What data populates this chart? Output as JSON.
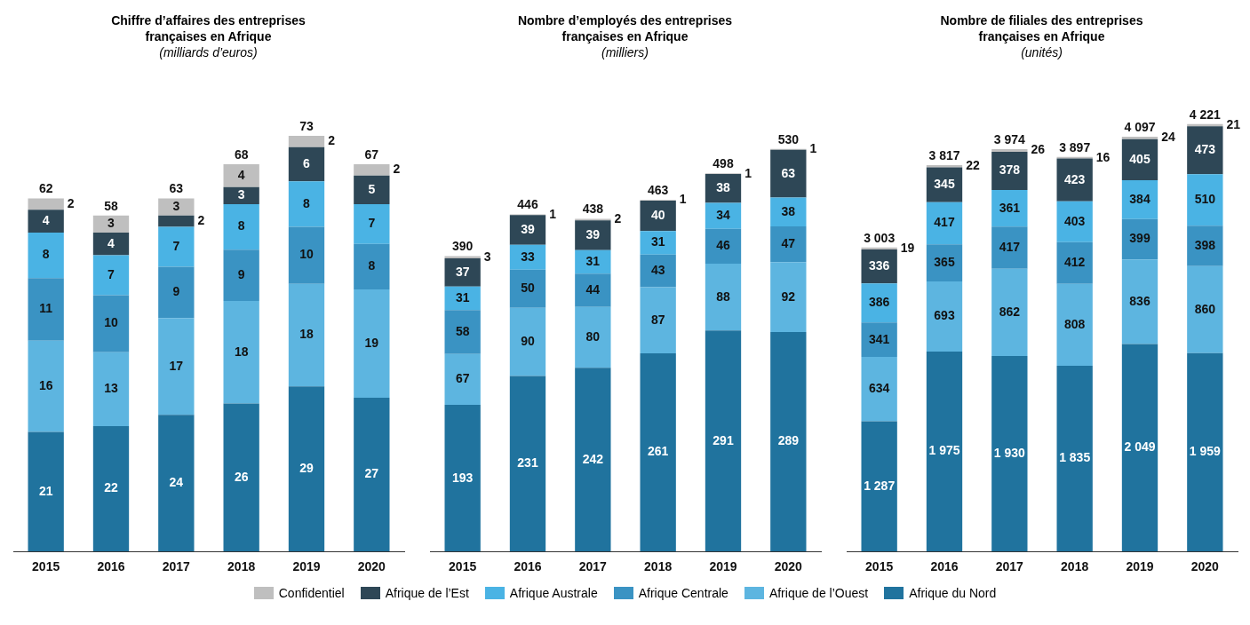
{
  "chart_data": [
    {
      "type": "bar",
      "title": "Chiffre d’affaires des entreprises françaises en Afrique",
      "subtitle": "(milliards d’euros)",
      "categories": [
        "2015",
        "2016",
        "2017",
        "2018",
        "2019",
        "2020"
      ],
      "stacked": true,
      "tick_labels": "x",
      "grid": false,
      "legend": "bottom",
      "data_labels": true,
      "series": [
        {
          "name": "Afrique du Nord",
          "color": "#20739e",
          "values": [
            21,
            22,
            24,
            26,
            29,
            27
          ]
        },
        {
          "name": "Afrique de l’Ouest",
          "color": "#5db5e0",
          "values": [
            16,
            13,
            17,
            18,
            18,
            19
          ]
        },
        {
          "name": "Afrique Centrale",
          "color": "#3a93c3",
          "values": [
            11,
            10,
            9,
            9,
            10,
            8
          ]
        },
        {
          "name": "Afrique Australe",
          "color": "#4ab3e4",
          "values": [
            8,
            7,
            7,
            8,
            8,
            7
          ]
        },
        {
          "name": "Afrique de l’Est",
          "color": "#2e4756",
          "values": [
            4,
            4,
            2,
            3,
            6,
            5
          ]
        },
        {
          "name": "Confidentiel",
          "color": "#bfbfbf",
          "values": [
            2,
            3,
            3,
            4,
            2,
            2
          ]
        }
      ],
      "totals": [
        "62",
        "58",
        "63",
        "68",
        "73",
        "67"
      ]
    },
    {
      "type": "bar",
      "title": "Nombre d’employés des entreprises françaises en Afrique",
      "subtitle": "(milliers)",
      "categories": [
        "2015",
        "2016",
        "2017",
        "2018",
        "2019",
        "2020"
      ],
      "stacked": true,
      "tick_labels": "x",
      "grid": false,
      "data_labels": true,
      "series": [
        {
          "color": "#20739e",
          "values": [
            193,
            231,
            242,
            261,
            291,
            289
          ]
        },
        {
          "color": "#5db5e0",
          "values": [
            67,
            90,
            80,
            87,
            88,
            92
          ]
        },
        {
          "color": "#3a93c3",
          "values": [
            58,
            50,
            44,
            43,
            46,
            47
          ]
        },
        {
          "color": "#4ab3e4",
          "values": [
            31,
            33,
            31,
            31,
            34,
            38
          ]
        },
        {
          "color": "#2e4756",
          "values": [
            37,
            39,
            39,
            40,
            38,
            63
          ]
        },
        {
          "color": "#bfbfbf",
          "values": [
            3,
            1,
            2,
            1,
            1,
            1
          ]
        }
      ],
      "totals": [
        "390",
        "446",
        "438",
        "463",
        "498",
        "530"
      ]
    },
    {
      "type": "bar",
      "title": "Nombre de filiales des entreprises françaises en Afrique",
      "subtitle": "(unités)",
      "categories": [
        "2015",
        "2016",
        "2017",
        "2018",
        "2019",
        "2020"
      ],
      "stacked": true,
      "tick_labels": "x",
      "grid": false,
      "series": [
        {
          "color": "#20739e",
          "values": [
            1287,
            1975,
            1930,
            1835,
            2049,
            1959
          ],
          "value_labels": [
            "1 287",
            "1 975",
            "1 930",
            "1 835",
            "2 049",
            "1 959"
          ]
        },
        {
          "color": "#5db5e0",
          "values": [
            634,
            693,
            862,
            808,
            836,
            860
          ],
          "value_labels": [
            "634",
            "693",
            "862",
            "808",
            "836",
            "860"
          ]
        },
        {
          "color": "#3a93c3",
          "values": [
            341,
            365,
            417,
            412,
            399,
            398
          ],
          "value_labels": [
            "341",
            "365",
            "417",
            "412",
            "399",
            "398"
          ]
        },
        {
          "color": "#4ab3e4",
          "values": [
            386,
            417,
            361,
            403,
            384,
            510
          ],
          "value_labels": [
            "386",
            "417",
            "361",
            "403",
            "384",
            "510"
          ]
        },
        {
          "color": "#2e4756",
          "values": [
            336,
            345,
            378,
            423,
            405,
            473
          ],
          "value_labels": [
            "336",
            "345",
            "378",
            "423",
            "405",
            "473"
          ]
        },
        {
          "color": "#bfbfbf",
          "values": [
            19,
            22,
            26,
            16,
            24,
            21
          ],
          "value_labels": [
            "19",
            "22",
            "26",
            "16",
            "24",
            "21"
          ]
        }
      ],
      "totals": [
        "3 003",
        "3 817",
        "3 974",
        "3 897",
        "4 097",
        "4 221"
      ]
    }
  ]
}
